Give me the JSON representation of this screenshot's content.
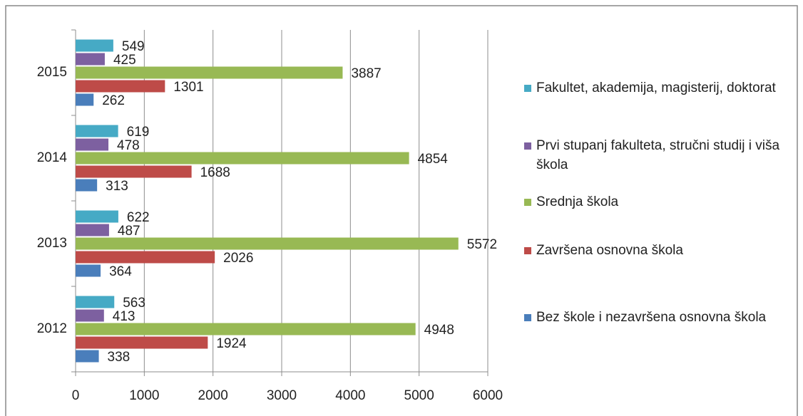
{
  "chart_data": {
    "type": "hbar",
    "categories": [
      "2012",
      "2013",
      "2014",
      "2015"
    ],
    "series": [
      {
        "name": "Bez škole i nezavršena osnovna škola",
        "color": "#4a7ebb",
        "values": [
          338,
          364,
          313,
          262
        ]
      },
      {
        "name": "Završena osnovna škola",
        "color": "#be4b48",
        "values": [
          1924,
          2026,
          1688,
          1301
        ]
      },
      {
        "name": "Srednja škola",
        "color": "#98b954",
        "values": [
          4948,
          5572,
          4854,
          3887
        ]
      },
      {
        "name": "Prvi stupanj fakulteta, stručni studij i viša škola",
        "color": "#7d60a0",
        "values": [
          413,
          487,
          478,
          425
        ]
      },
      {
        "name": "Fakultet, akademija, magisterij, doktorat",
        "color": "#46aac5",
        "values": [
          563,
          622,
          619,
          549
        ]
      }
    ],
    "xlim": [
      0,
      6000
    ],
    "xticks": [
      0,
      1000,
      2000,
      3000,
      4000,
      5000,
      6000
    ],
    "grid": true
  }
}
